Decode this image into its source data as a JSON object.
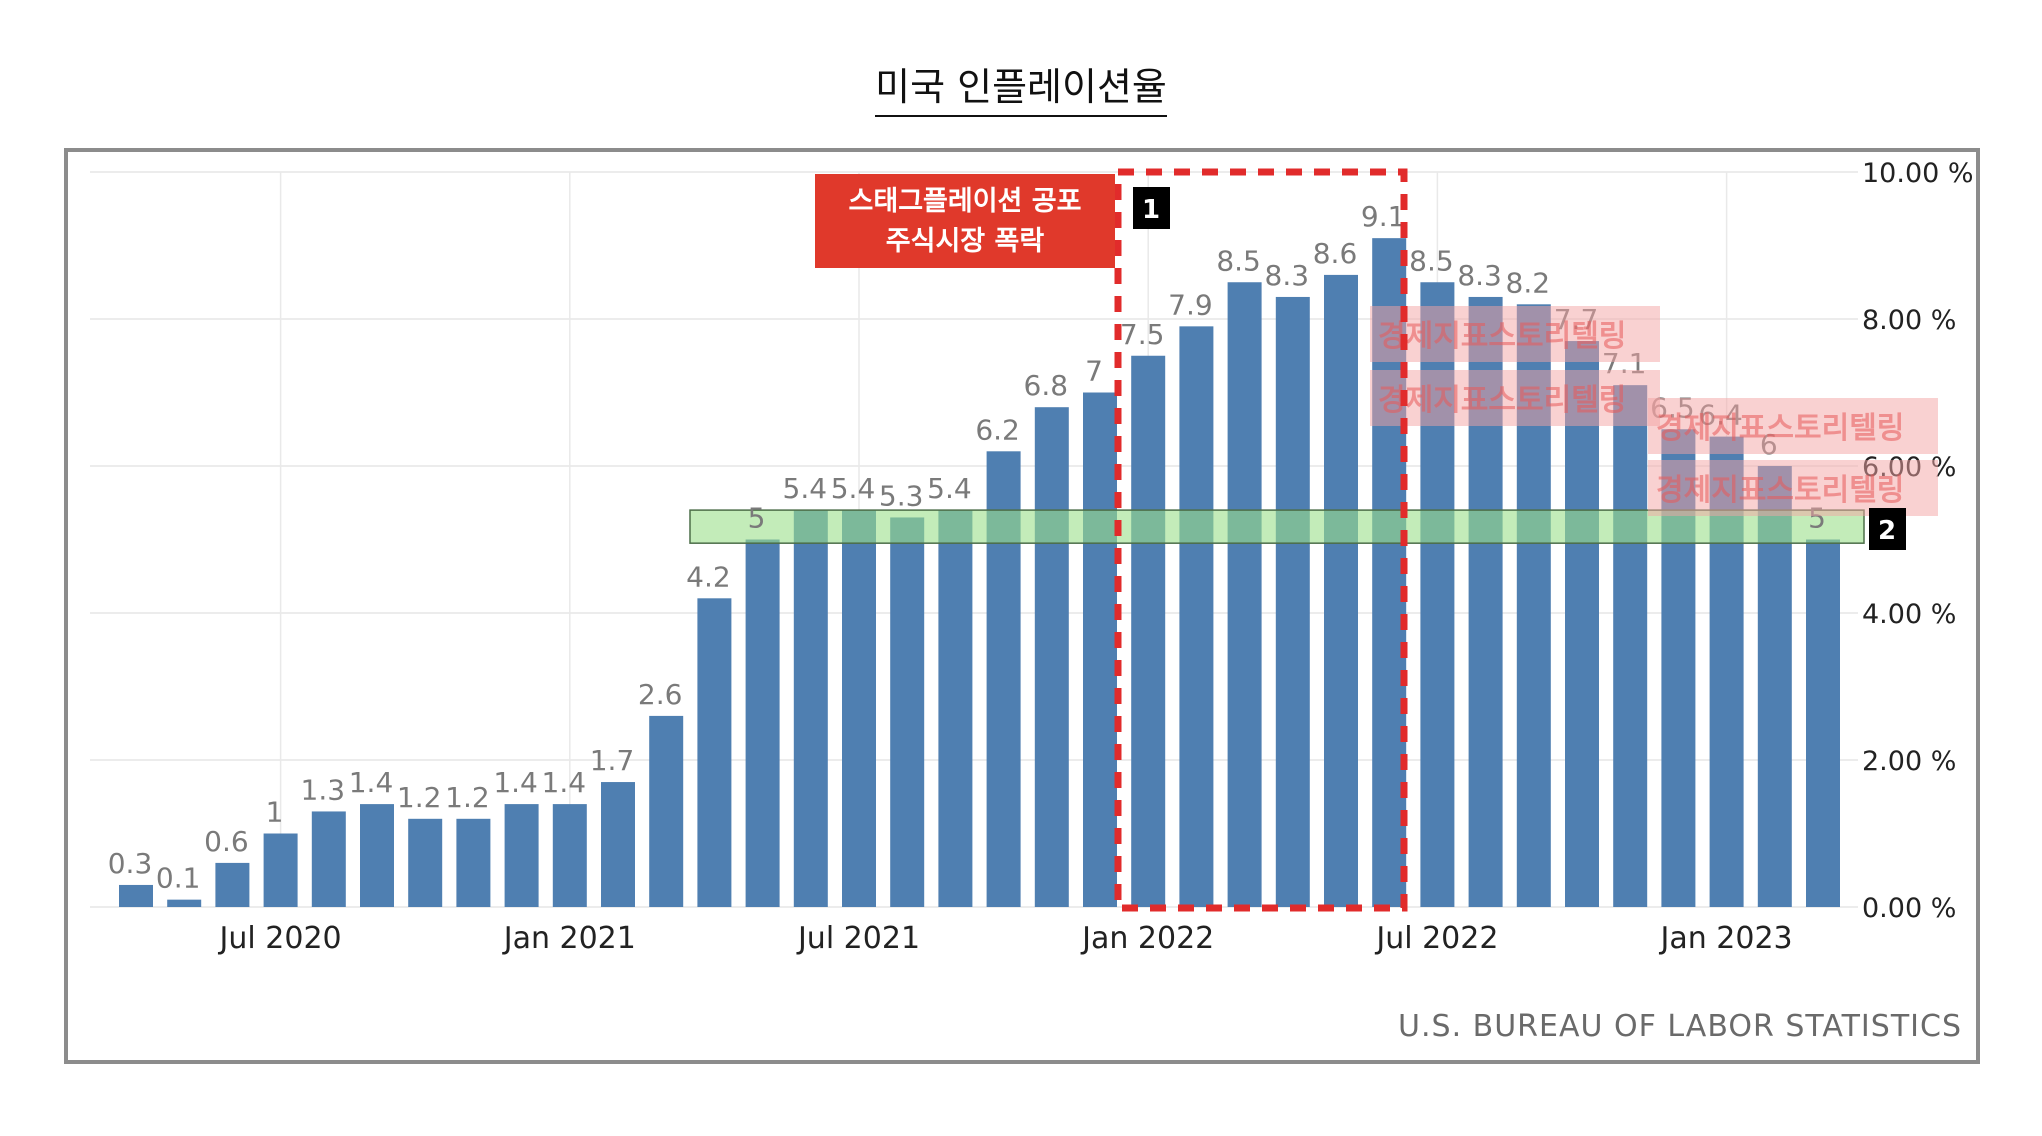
{
  "title": "미국 인플레이션율",
  "source": "U.S. BUREAU OF LABOR STATISTICS",
  "colors": {
    "bar": "#4f7fb1",
    "highlight_box": "#e12b2b",
    "band": "#9be08a",
    "annotation_bg": "#e0392b",
    "marker_bg": "#000000"
  },
  "annotation": {
    "line1": "스태그플레이션 공포",
    "line2": "주식시장 폭락"
  },
  "markers": [
    "1",
    "2"
  ],
  "watermark": "경제지표스토리텔링",
  "chart_data": {
    "type": "bar",
    "title": "미국 인플레이션율",
    "xlabel": "",
    "ylabel": "",
    "ylim": [
      0,
      10
    ],
    "yticks": [
      "0.00 %",
      "2.00 %",
      "4.00 %",
      "6.00 %",
      "8.00 %",
      "10.00 %"
    ],
    "xticks": [
      "Jul 2020",
      "Jan 2021",
      "Jul 2021",
      "Jan 2022",
      "Jul 2022",
      "Jan 2023"
    ],
    "grid": true,
    "categories": [
      "Apr 2020",
      "May 2020",
      "Jun 2020",
      "Jul 2020",
      "Aug 2020",
      "Sep 2020",
      "Oct 2020",
      "Nov 2020",
      "Dec 2020",
      "Jan 2021",
      "Feb 2021",
      "Mar 2021",
      "Apr 2021",
      "May 2021",
      "Jun 2021",
      "Jul 2021",
      "Aug 2021",
      "Sep 2021",
      "Oct 2021",
      "Nov 2021",
      "Dec 2021",
      "Jan 2022",
      "Feb 2022",
      "Mar 2022",
      "Apr 2022",
      "May 2022",
      "Jun 2022",
      "Jul 2022",
      "Aug 2022",
      "Sep 2022",
      "Oct 2022",
      "Nov 2022",
      "Dec 2022",
      "Jan 2023",
      "Feb 2023",
      "Mar 2023"
    ],
    "values": [
      0.3,
      0.1,
      0.6,
      1,
      1.3,
      1.4,
      1.2,
      1.2,
      1.4,
      1.4,
      1.7,
      2.6,
      4.2,
      5,
      5.4,
      5.4,
      5.3,
      5.4,
      6.2,
      6.8,
      7,
      7.5,
      7.9,
      8.5,
      8.3,
      8.6,
      9.1,
      8.5,
      8.3,
      8.2,
      7.7,
      7.1,
      6.5,
      6.4,
      6,
      5
    ],
    "labels": [
      "0.3",
      "0.1",
      "0.6",
      "1",
      "1.3",
      "1.4",
      "1.2",
      "1.2",
      "1.4",
      "1.4",
      "1.7",
      "2.6",
      "4.2",
      "5",
      "5.4",
      "5.4",
      "5.3",
      "5.4",
      "6.2",
      "6.8",
      "7",
      "7.5",
      "7.9",
      "8.5",
      "8.3",
      "8.6",
      "9.1",
      "8.5",
      "8.3",
      "8.2",
      "7.7",
      "7.1",
      "6.5",
      "6.4",
      "6",
      "5"
    ]
  }
}
